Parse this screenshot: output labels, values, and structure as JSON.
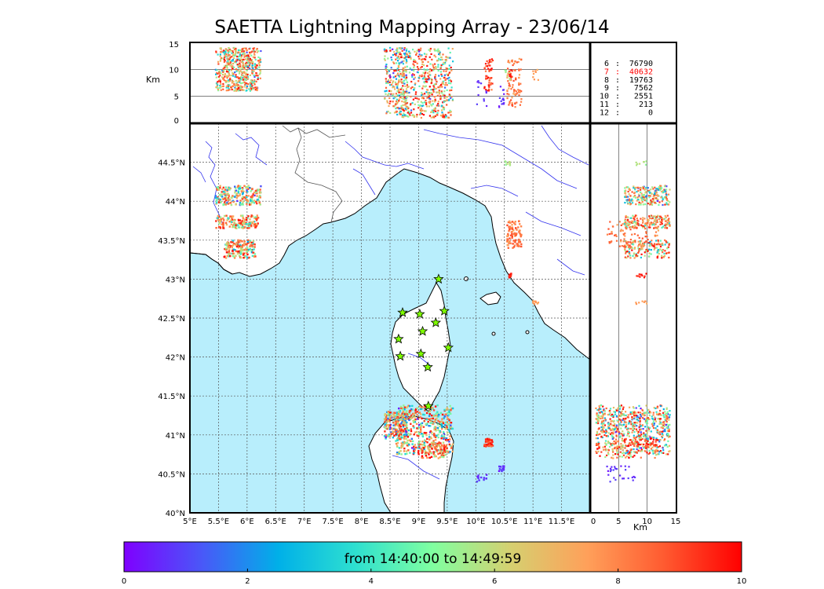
{
  "title": "SAETTA Lightning Mapping Array - 23/06/14",
  "time_range_label": "from 14:40:00 to 14:49:59",
  "colors": {
    "sea": "#b8eefc",
    "coast": "#000000",
    "rivers": "#3333ee",
    "borders": "#444444",
    "stations": "#7fff00",
    "highlight_count": "#ff0000"
  },
  "station_icon": "star-icon",
  "map_axes": {
    "lon_ticks": [
      "5°E",
      "5.5°E",
      "6°E",
      "6.5°E",
      "7°E",
      "7.5°E",
      "8°E",
      "8.5°E",
      "9°E",
      "9.5°E",
      "10°E",
      "10.5°E",
      "11°E",
      "11.5°E"
    ],
    "lat_ticks": [
      "40°N",
      "40.5°N",
      "41°N",
      "41.5°N",
      "42°N",
      "42.5°N",
      "43°N",
      "43.5°N",
      "44°N",
      "44.5°N"
    ],
    "lon_range": [
      5,
      12
    ],
    "lat_range": [
      40,
      45
    ],
    "grid": true
  },
  "altitude_axis": {
    "unit": "Km",
    "ticks": [
      "0",
      "5",
      "10",
      "15"
    ],
    "range": [
      0,
      15
    ]
  },
  "station_counts": [
    {
      "stations": "6",
      "sep": ":",
      "count": "76790",
      "highlight": false
    },
    {
      "stations": "7",
      "sep": ":",
      "count": "40632",
      "highlight": true
    },
    {
      "stations": "8",
      "sep": ":",
      "count": "19763",
      "highlight": false
    },
    {
      "stations": "9",
      "sep": ":",
      "count": "7562",
      "highlight": false
    },
    {
      "stations": "10",
      "sep": ":",
      "count": "2551",
      "highlight": false
    },
    {
      "stations": "11",
      "sep": ":",
      "count": "213",
      "highlight": false
    },
    {
      "stations": "12",
      "sep": ":",
      "count": "0",
      "highlight": false
    }
  ],
  "colorbar": {
    "ticks": [
      "0",
      "2",
      "4",
      "6",
      "8",
      "10"
    ],
    "range": [
      0,
      10
    ],
    "stops": [
      "#7f00ff",
      "#4a57f8",
      "#00b0e8",
      "#2ee0d0",
      "#80ffa0",
      "#d5d070",
      "#ffa05a",
      "#ff5a30",
      "#ff0000"
    ]
  },
  "stations": [
    {
      "lon": 9.35,
      "lat": 43.0
    },
    {
      "lon": 8.72,
      "lat": 42.57
    },
    {
      "lon": 9.02,
      "lat": 42.55
    },
    {
      "lon": 9.45,
      "lat": 42.59
    },
    {
      "lon": 9.3,
      "lat": 42.44
    },
    {
      "lon": 9.07,
      "lat": 42.33
    },
    {
      "lon": 8.65,
      "lat": 42.23
    },
    {
      "lon": 9.52,
      "lat": 42.12
    },
    {
      "lon": 8.68,
      "lat": 42.01
    },
    {
      "lon": 9.04,
      "lat": 42.04
    },
    {
      "lon": 9.16,
      "lat": 41.87
    },
    {
      "lon": 9.17,
      "lat": 41.37
    }
  ],
  "clusters": [
    {
      "lon_range": [
        5.45,
        6.25
      ],
      "lat_range": [
        43.95,
        44.2
      ],
      "alt_range": [
        6,
        14
      ],
      "time_range": [
        0.5,
        9.5
      ],
      "n": 220
    },
    {
      "lon_range": [
        5.45,
        6.2
      ],
      "lat_range": [
        43.65,
        43.82
      ],
      "alt_range": [
        6,
        14
      ],
      "time_range": [
        3,
        10
      ],
      "n": 160
    },
    {
      "lon_range": [
        5.6,
        6.15
      ],
      "lat_range": [
        43.27,
        43.5
      ],
      "alt_range": [
        6,
        14
      ],
      "time_range": [
        2,
        10
      ],
      "n": 160
    },
    {
      "lon_range": [
        8.4,
        8.8
      ],
      "lat_range": [
        40.95,
        41.3
      ],
      "alt_range": [
        1,
        14
      ],
      "time_range": [
        0,
        10
      ],
      "n": 200
    },
    {
      "lon_range": [
        8.6,
        9.6
      ],
      "lat_range": [
        40.75,
        41.38
      ],
      "alt_range": [
        1,
        14
      ],
      "time_range": [
        0,
        10
      ],
      "n": 460
    },
    {
      "lon_range": [
        9.05,
        9.5
      ],
      "lat_range": [
        40.7,
        40.9
      ],
      "alt_range": [
        1,
        12
      ],
      "time_range": [
        4,
        10
      ],
      "n": 90
    },
    {
      "lon_range": [
        10.15,
        10.3
      ],
      "lat_range": [
        40.85,
        40.95
      ],
      "alt_range": [
        6,
        12
      ],
      "time_range": [
        8,
        10
      ],
      "n": 50
    },
    {
      "lon_range": [
        10.55,
        10.8
      ],
      "lat_range": [
        43.4,
        43.75
      ],
      "alt_range": [
        3,
        12
      ],
      "time_range": [
        7,
        9
      ],
      "n": 90
    },
    {
      "lon_range": [
        10.4,
        10.5
      ],
      "lat_range": [
        40.53,
        40.6
      ],
      "alt_range": [
        2,
        8
      ],
      "time_range": [
        0,
        1
      ],
      "n": 15
    },
    {
      "lon_range": [
        10.0,
        10.2
      ],
      "lat_range": [
        40.4,
        40.5
      ],
      "alt_range": [
        2,
        8
      ],
      "time_range": [
        0,
        1
      ],
      "n": 12
    },
    {
      "lon_range": [
        10.57,
        10.62
      ],
      "lat_range": [
        43.02,
        43.07
      ],
      "alt_range": [
        8,
        10
      ],
      "time_range": [
        9,
        10
      ],
      "n": 10
    },
    {
      "lon_range": [
        10.5,
        10.6
      ],
      "lat_range": [
        44.46,
        44.52
      ],
      "alt_range": [
        8,
        10
      ],
      "time_range": [
        5,
        6
      ],
      "n": 8
    },
    {
      "lon_range": [
        11.0,
        11.1
      ],
      "lat_range": [
        42.68,
        42.72
      ],
      "alt_range": [
        8,
        10
      ],
      "time_range": [
        7,
        8
      ],
      "n": 8
    }
  ]
}
